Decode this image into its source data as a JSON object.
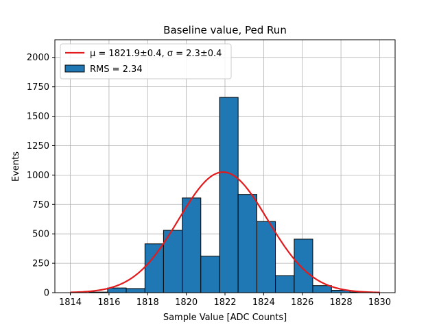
{
  "chart_data": {
    "type": "bar",
    "title": "Baseline value, Ped Run",
    "xlabel": "Sample Value [ADC Counts]",
    "ylabel": "Events",
    "xlim": [
      1813.2,
      1830.8
    ],
    "ylim": [
      0,
      2150
    ],
    "xticks": [
      1814,
      1816,
      1818,
      1820,
      1822,
      1824,
      1826,
      1828,
      1830
    ],
    "yticks": [
      0,
      250,
      500,
      750,
      1000,
      1250,
      1500,
      1750,
      2000
    ],
    "grid": true,
    "legend_position": "upper-left",
    "bin_edges": [
      1814.0,
      1815.0,
      1816.0,
      1817.0,
      1818.0,
      1819.0,
      1820.0,
      1821.0,
      1822.0,
      1823.0,
      1824.0,
      1825.0,
      1826.0,
      1827.0,
      1828.0,
      1829.0,
      1830.0
    ],
    "bins": [
      {
        "x0": 1814.0,
        "x1": 1814.96,
        "count": 0
      },
      {
        "x0": 1814.96,
        "x1": 1815.93,
        "count": 5
      },
      {
        "x0": 1815.93,
        "x1": 1816.89,
        "count": 40
      },
      {
        "x0": 1816.89,
        "x1": 1817.86,
        "count": 35
      },
      {
        "x0": 1817.86,
        "x1": 1818.82,
        "count": 415
      },
      {
        "x0": 1818.82,
        "x1": 1819.79,
        "count": 530
      },
      {
        "x0": 1819.79,
        "x1": 1820.75,
        "count": 805
      },
      {
        "x0": 1820.75,
        "x1": 1821.72,
        "count": 310
      },
      {
        "x0": 1821.72,
        "x1": 1822.68,
        "count": 1660
      },
      {
        "x0": 1822.68,
        "x1": 1823.65,
        "count": 835
      },
      {
        "x0": 1823.65,
        "x1": 1824.61,
        "count": 605
      },
      {
        "x0": 1824.61,
        "x1": 1825.58,
        "count": 145
      },
      {
        "x0": 1825.58,
        "x1": 1826.54,
        "count": 455
      },
      {
        "x0": 1826.54,
        "x1": 1827.51,
        "count": 60
      },
      {
        "x0": 1827.51,
        "x1": 1828.47,
        "count": 20
      },
      {
        "x0": 1828.47,
        "x1": 1829.44,
        "count": 5
      },
      {
        "x0": 1829.44,
        "x1": 1830.0,
        "count": 0
      }
    ],
    "fit": {
      "type": "gaussian",
      "amplitude": 1025,
      "mu": 1821.9,
      "sigma": 2.3,
      "x_range": [
        1814,
        1830
      ]
    },
    "colors": {
      "bar_fill": "#1f77b4",
      "bar_edge": "#000000",
      "fit_line": "#e31a1c",
      "grid": "#b0b0b0"
    },
    "legend": [
      {
        "kind": "line",
        "label": "μ = 1821.9±0.4, σ = 2.3±0.4"
      },
      {
        "kind": "patch",
        "label": "RMS = 2.34"
      }
    ]
  }
}
